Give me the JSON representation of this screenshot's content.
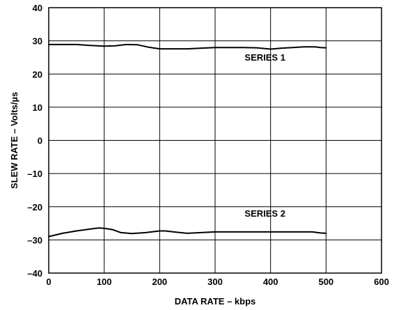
{
  "chart_data": {
    "type": "line",
    "title": "",
    "xlabel": "DATA RATE – kbps",
    "ylabel": "SLEW RATE – Volts/µs",
    "xlim": [
      0,
      600
    ],
    "ylim": [
      -40,
      40
    ],
    "x_ticks": [
      0,
      100,
      200,
      300,
      400,
      500,
      600
    ],
    "y_ticks": [
      -40,
      -30,
      -20,
      -10,
      0,
      10,
      20,
      30,
      40
    ],
    "x_tick_labels": [
      "0",
      "100",
      "200",
      "300",
      "400",
      "500",
      "600"
    ],
    "y_tick_labels": [
      "–40",
      "–30",
      "–20",
      "–10",
      "0",
      "10",
      "20",
      "30",
      "40"
    ],
    "grid": true,
    "legend": "none",
    "series": [
      {
        "name": "SERIES 1",
        "x": [
          0,
          25,
          50,
          75,
          100,
          120,
          140,
          160,
          180,
          200,
          225,
          250,
          275,
          300,
          325,
          350,
          375,
          400,
          420,
          440,
          460,
          480,
          490,
          500
        ],
        "y": [
          28.9,
          28.9,
          28.9,
          28.6,
          28.4,
          28.5,
          28.9,
          28.8,
          28.1,
          27.6,
          27.6,
          27.6,
          27.8,
          28.0,
          28.0,
          28.0,
          27.9,
          27.5,
          27.8,
          28.0,
          28.2,
          28.2,
          28.0,
          27.9
        ]
      },
      {
        "name": "SERIES 2",
        "x": [
          0,
          25,
          50,
          75,
          90,
          100,
          115,
          130,
          150,
          175,
          200,
          210,
          225,
          250,
          275,
          300,
          325,
          350,
          375,
          400,
          425,
          450,
          475,
          490,
          500
        ],
        "y": [
          -29.0,
          -28.0,
          -27.3,
          -26.7,
          -26.4,
          -26.5,
          -26.9,
          -27.8,
          -28.1,
          -27.8,
          -27.3,
          -27.3,
          -27.6,
          -28.0,
          -27.8,
          -27.6,
          -27.6,
          -27.6,
          -27.6,
          -27.6,
          -27.6,
          -27.6,
          -27.6,
          -27.9,
          -28.0
        ]
      }
    ],
    "annotations": [
      {
        "text": "SERIES 1",
        "x": 390,
        "y": 24
      },
      {
        "text": "SERIES 2",
        "x": 390,
        "y": -23
      }
    ]
  }
}
